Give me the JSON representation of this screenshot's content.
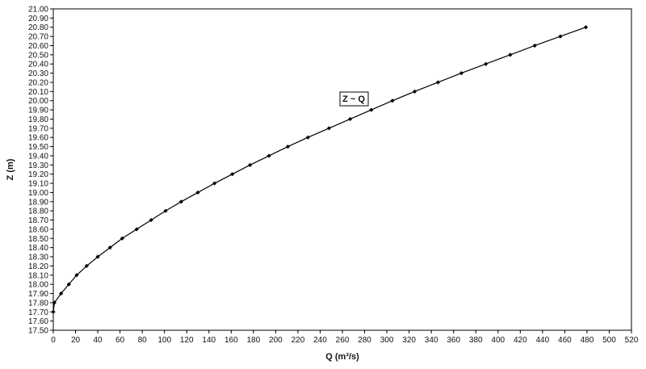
{
  "chart_data": {
    "type": "line",
    "title": "",
    "xlabel": "Q (m³/s)",
    "ylabel": "Z (m)",
    "xlim": [
      0,
      520
    ],
    "ylim": [
      17.5,
      21.0
    ],
    "x_ticks": [
      0,
      20,
      40,
      60,
      80,
      100,
      120,
      140,
      160,
      180,
      200,
      220,
      240,
      260,
      280,
      300,
      320,
      340,
      360,
      380,
      400,
      420,
      440,
      460,
      480,
      500,
      520
    ],
    "y_ticks": [
      "17.50",
      "17.60",
      "17.70",
      "17.80",
      "17.90",
      "18.00",
      "18.10",
      "18.20",
      "18.30",
      "18.40",
      "18.50",
      "18.60",
      "18.70",
      "18.80",
      "18.90",
      "19.00",
      "19.10",
      "19.20",
      "19.30",
      "19.40",
      "19.50",
      "19.60",
      "19.70",
      "19.80",
      "19.90",
      "20.00",
      "20.10",
      "20.20",
      "20.30",
      "20.40",
      "20.50",
      "20.60",
      "20.70",
      "20.80",
      "20.90",
      "21.00"
    ],
    "grid": false,
    "legend": {
      "label": "Z ~ Q",
      "placement": "center-top"
    },
    "series": [
      {
        "name": "Z ~ Q",
        "color": "#000000",
        "marker": "diamond",
        "x": [
          0,
          1,
          7,
          14,
          21,
          30,
          40,
          51,
          62,
          75,
          88,
          101,
          115,
          130,
          145,
          161,
          177,
          194,
          211,
          229,
          248,
          267,
          286,
          305,
          325,
          346,
          367,
          389,
          411,
          433,
          456,
          479
        ],
        "y": [
          17.7,
          17.8,
          17.9,
          18.0,
          18.1,
          18.2,
          18.3,
          18.4,
          18.5,
          18.6,
          18.7,
          18.8,
          18.9,
          19.0,
          19.1,
          19.2,
          19.3,
          19.4,
          19.5,
          19.6,
          19.7,
          19.8,
          19.9,
          20.0,
          20.1,
          20.2,
          20.3,
          20.4,
          20.5,
          20.6,
          20.7,
          20.8
        ]
      }
    ]
  }
}
